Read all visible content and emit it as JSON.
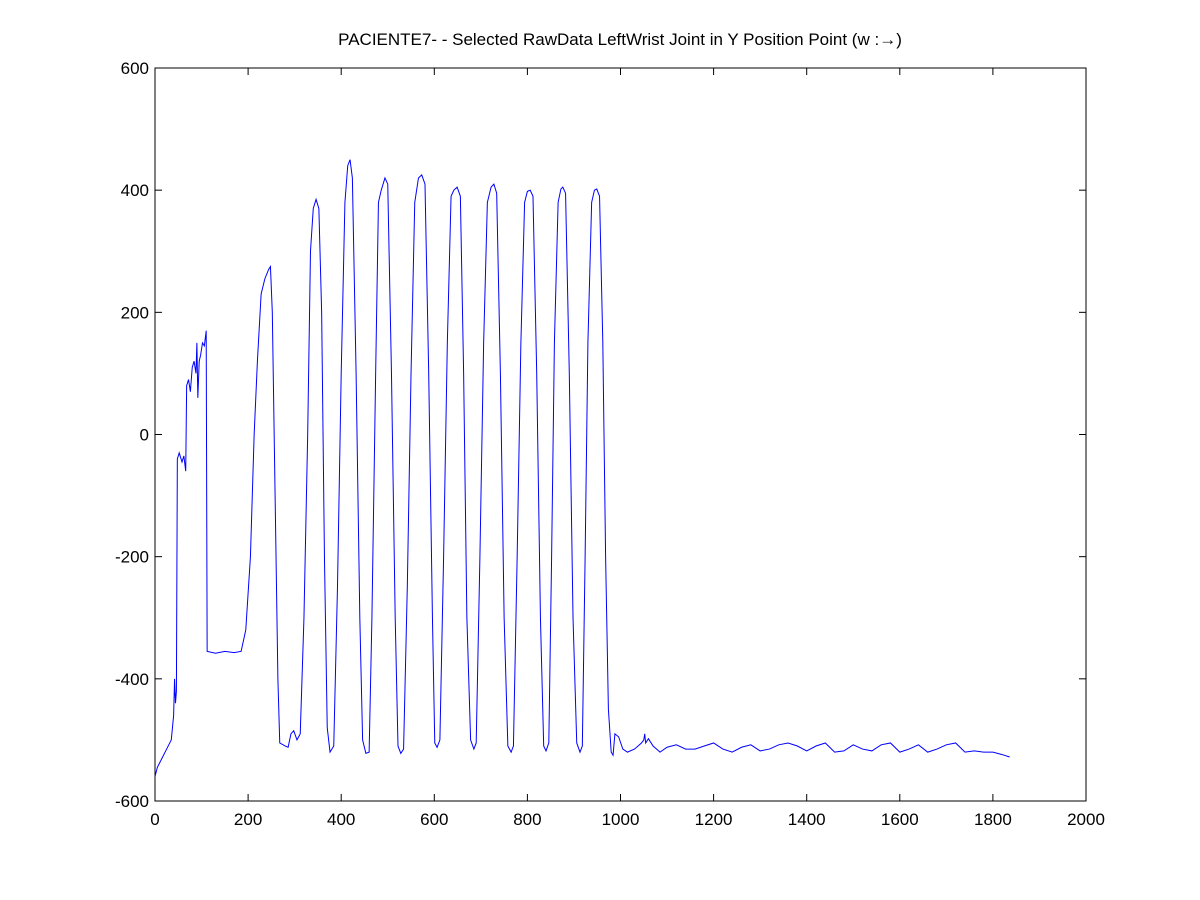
{
  "chart_data": {
    "type": "line",
    "title": "PACIENTE7- - Selected RawData LeftWrist Joint in Y Position Point (w :→)",
    "xlim": [
      0,
      2000
    ],
    "xticks": [
      0,
      200,
      400,
      600,
      800,
      1000,
      1200,
      1400,
      1600,
      1800,
      2000
    ],
    "ylim": [
      -600,
      600
    ],
    "yticks": [
      -600,
      -400,
      -200,
      0,
      200,
      400,
      600
    ],
    "grid": false,
    "x": [
      0,
      5,
      15,
      25,
      35,
      40,
      42,
      44,
      46,
      48,
      52,
      58,
      62,
      66,
      68,
      72,
      76,
      80,
      84,
      88,
      90,
      92,
      95,
      98,
      102,
      106,
      110,
      112,
      130,
      150,
      170,
      185,
      195,
      205,
      213,
      220,
      228,
      236,
      244,
      248,
      252,
      258,
      264,
      268,
      280,
      286,
      292,
      298,
      305,
      312,
      320,
      328,
      334,
      340,
      346,
      352,
      358,
      364,
      370,
      376,
      384,
      392,
      400,
      408,
      414,
      419,
      424,
      432,
      440,
      446,
      453,
      460,
      466,
      474,
      480,
      486,
      494,
      500,
      508,
      516,
      522,
      528,
      534,
      542,
      550,
      558,
      566,
      573,
      580,
      588,
      596,
      601,
      606,
      612,
      620,
      628,
      636,
      642,
      649,
      656,
      663,
      670,
      678,
      685,
      690,
      698,
      706,
      714,
      722,
      728,
      734,
      742,
      750,
      758,
      765,
      770,
      778,
      786,
      794,
      800,
      806,
      812,
      820,
      828,
      835,
      840,
      846,
      852,
      858,
      866,
      872,
      876,
      882,
      890,
      898,
      906,
      913,
      918,
      924,
      930,
      938,
      944,
      949,
      955,
      962,
      968,
      974,
      980,
      984,
      988,
      996,
      1005,
      1015,
      1030,
      1045,
      1050,
      1052,
      1054,
      1060,
      1070,
      1085,
      1100,
      1120,
      1140,
      1160,
      1180,
      1200,
      1220,
      1240,
      1260,
      1280,
      1300,
      1320,
      1340,
      1360,
      1380,
      1400,
      1420,
      1440,
      1460,
      1480,
      1500,
      1520,
      1540,
      1560,
      1580,
      1600,
      1620,
      1640,
      1660,
      1680,
      1700,
      1720,
      1740,
      1760,
      1780,
      1800,
      1820,
      1836
    ],
    "series": [
      {
        "color": "#0000ff",
        "values": [
          -560,
          -545,
          -530,
          -515,
          -500,
          -460,
          -400,
          -440,
          -420,
          -40,
          -30,
          -45,
          -35,
          -60,
          80,
          90,
          70,
          110,
          120,
          100,
          150,
          60,
          120,
          130,
          150,
          145,
          170,
          -355,
          -358,
          -355,
          -357,
          -355,
          -320,
          -200,
          0,
          120,
          230,
          255,
          270,
          275,
          200,
          -100,
          -400,
          -505,
          -510,
          -512,
          -490,
          -485,
          -500,
          -490,
          -300,
          0,
          300,
          370,
          385,
          370,
          200,
          -200,
          -480,
          -520,
          -510,
          -250,
          100,
          380,
          440,
          450,
          420,
          100,
          -300,
          -500,
          -522,
          -520,
          -300,
          100,
          380,
          400,
          420,
          410,
          100,
          -300,
          -510,
          -522,
          -515,
          -250,
          100,
          380,
          420,
          425,
          410,
          100,
          -300,
          -505,
          -512,
          -500,
          -200,
          150,
          390,
          400,
          405,
          390,
          100,
          -300,
          -500,
          -515,
          -505,
          -200,
          150,
          380,
          405,
          410,
          395,
          100,
          -300,
          -510,
          -520,
          -510,
          -200,
          150,
          380,
          398,
          400,
          390,
          100,
          -300,
          -510,
          -518,
          -505,
          -200,
          150,
          380,
          402,
          405,
          395,
          100,
          -300,
          -505,
          -520,
          -510,
          -200,
          150,
          380,
          400,
          402,
          390,
          150,
          -200,
          -450,
          -520,
          -525,
          -490,
          -495,
          -515,
          -520,
          -515,
          -505,
          -500,
          -490,
          -505,
          -498,
          -510,
          -520,
          -512,
          -508,
          -515,
          -515,
          -510,
          -505,
          -515,
          -520,
          -512,
          -508,
          -518,
          -515,
          -508,
          -505,
          -510,
          -518,
          -510,
          -505,
          -520,
          -518,
          -508,
          -515,
          -518,
          -508,
          -505,
          -520,
          -515,
          -508,
          -520,
          -515,
          -508,
          -505,
          -520,
          -518,
          -520,
          -520,
          -524,
          -528
        ]
      }
    ]
  }
}
